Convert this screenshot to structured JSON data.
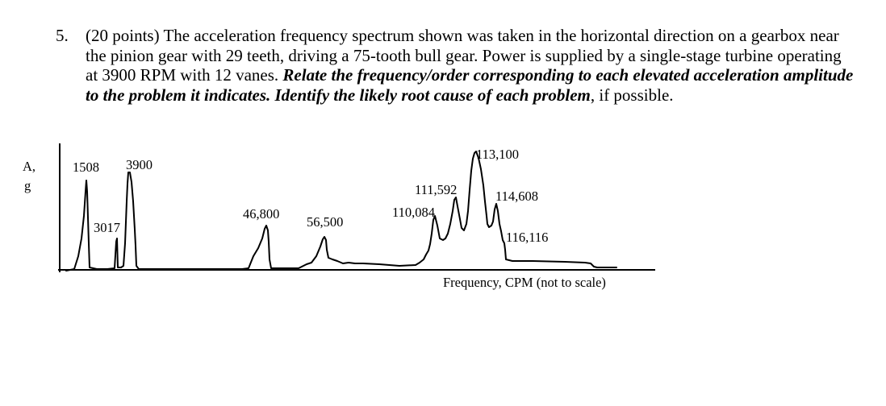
{
  "question": {
    "number": "5.",
    "points": "(20 points)",
    "intro": "The acceleration frequency spectrum shown was taken in the horizontal direction on a gearbox near the pinion gear with 29 teeth, driving a 75-tooth bull gear. Power is supplied by a single-stage turbine operating at 3900 RPM with 12 vanes.",
    "instruction_bold": "Relate the frequency/order corresponding to each elevated acceleration amplitude to the problem it indicates. Identify the likely root cause of each problem",
    "tail": ", if possible."
  },
  "chart_data": {
    "type": "line",
    "ylabel_line1": "A,",
    "ylabel_line2": "g",
    "xlabel": "Frequency, CPM (not to scale)",
    "peaks": [
      {
        "label": "1508"
      },
      {
        "label": "3017"
      },
      {
        "label": "3900"
      },
      {
        "label": "46,800"
      },
      {
        "label": "56,500"
      },
      {
        "label": "110,084"
      },
      {
        "label": "111,592"
      },
      {
        "label": "113,100"
      },
      {
        "label": "114,608"
      },
      {
        "label": "116,116"
      }
    ]
  }
}
